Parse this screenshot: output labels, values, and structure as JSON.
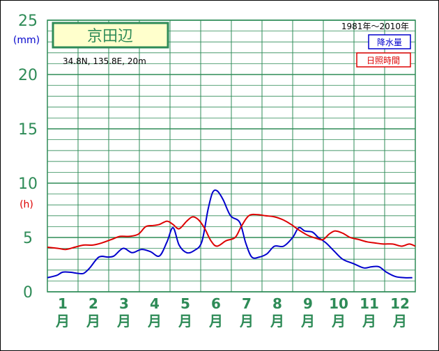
{
  "chart_data": {
    "type": "line",
    "title": "京田辺",
    "location": "34.8N, 135.8E, 20m",
    "period": "1981年～2010年",
    "units": {
      "left": "(mm)",
      "right": "(h)"
    },
    "y_ticks": [
      {
        "value": 0,
        "label": "0"
      },
      {
        "value": 5,
        "label": "5"
      },
      {
        "value": 10,
        "label": "10"
      },
      {
        "value": 15,
        "label": "15"
      },
      {
        "value": 20,
        "label": "20"
      },
      {
        "value": 25,
        "label": "25"
      }
    ],
    "ylim": [
      0,
      25
    ],
    "xlim": [
      0.5,
      12.65
    ],
    "month_labels": [
      {
        "num": "1",
        "unit": "月"
      },
      {
        "num": "2",
        "unit": "月"
      },
      {
        "num": "3",
        "unit": "月"
      },
      {
        "num": "4",
        "unit": "月"
      },
      {
        "num": "5",
        "unit": "月"
      },
      {
        "num": "6",
        "unit": "月"
      },
      {
        "num": "7",
        "unit": "月"
      },
      {
        "num": "8",
        "unit": "月"
      },
      {
        "num": "9",
        "unit": "月"
      },
      {
        "num": "10",
        "unit": "月"
      },
      {
        "num": "11",
        "unit": "月"
      },
      {
        "num": "12",
        "unit": "月"
      }
    ],
    "grid": true,
    "series": [
      {
        "name": "降水量",
        "color": "#0000cc",
        "points": [
          [
            0.5,
            1.3
          ],
          [
            0.8,
            1.5
          ],
          [
            1.0,
            1.8
          ],
          [
            1.25,
            1.8
          ],
          [
            1.5,
            1.7
          ],
          [
            1.7,
            1.7
          ],
          [
            1.9,
            2.2
          ],
          [
            2.2,
            3.2
          ],
          [
            2.5,
            3.2
          ],
          [
            2.7,
            3.3
          ],
          [
            3.0,
            4.0
          ],
          [
            3.3,
            3.6
          ],
          [
            3.6,
            3.9
          ],
          [
            3.9,
            3.7
          ],
          [
            4.2,
            3.3
          ],
          [
            4.45,
            4.6
          ],
          [
            4.65,
            5.9
          ],
          [
            4.85,
            4.3
          ],
          [
            5.1,
            3.6
          ],
          [
            5.35,
            3.8
          ],
          [
            5.6,
            4.6
          ],
          [
            5.8,
            7.5
          ],
          [
            5.95,
            9.1
          ],
          [
            6.1,
            9.3
          ],
          [
            6.3,
            8.5
          ],
          [
            6.55,
            7.0
          ],
          [
            6.85,
            6.4
          ],
          [
            7.05,
            4.5
          ],
          [
            7.25,
            3.2
          ],
          [
            7.5,
            3.2
          ],
          [
            7.75,
            3.5
          ],
          [
            8.0,
            4.2
          ],
          [
            8.3,
            4.2
          ],
          [
            8.6,
            5.0
          ],
          [
            8.8,
            5.9
          ],
          [
            9.0,
            5.6
          ],
          [
            9.25,
            5.5
          ],
          [
            9.45,
            5.0
          ],
          [
            9.7,
            4.5
          ],
          [
            9.95,
            3.8
          ],
          [
            10.25,
            3.0
          ],
          [
            10.6,
            2.6
          ],
          [
            10.95,
            2.2
          ],
          [
            11.2,
            2.3
          ],
          [
            11.45,
            2.3
          ],
          [
            11.7,
            1.8
          ],
          [
            12.0,
            1.4
          ],
          [
            12.3,
            1.3
          ],
          [
            12.55,
            1.3
          ]
        ]
      },
      {
        "name": "日照時間",
        "color": "#dd0000",
        "points": [
          [
            0.5,
            4.1
          ],
          [
            0.85,
            4.0
          ],
          [
            1.1,
            3.9
          ],
          [
            1.4,
            4.1
          ],
          [
            1.7,
            4.3
          ],
          [
            2.0,
            4.3
          ],
          [
            2.3,
            4.5
          ],
          [
            2.6,
            4.8
          ],
          [
            2.9,
            5.1
          ],
          [
            3.2,
            5.1
          ],
          [
            3.5,
            5.3
          ],
          [
            3.75,
            6.0
          ],
          [
            4.0,
            6.1
          ],
          [
            4.2,
            6.2
          ],
          [
            4.45,
            6.5
          ],
          [
            4.65,
            6.2
          ],
          [
            4.85,
            5.8
          ],
          [
            5.1,
            6.5
          ],
          [
            5.3,
            6.9
          ],
          [
            5.5,
            6.6
          ],
          [
            5.7,
            5.8
          ],
          [
            5.9,
            4.7
          ],
          [
            6.1,
            4.2
          ],
          [
            6.4,
            4.7
          ],
          [
            6.7,
            5.0
          ],
          [
            6.9,
            6.0
          ],
          [
            7.15,
            7.0
          ],
          [
            7.45,
            7.1
          ],
          [
            7.7,
            7.0
          ],
          [
            8.0,
            6.9
          ],
          [
            8.3,
            6.6
          ],
          [
            8.55,
            6.2
          ],
          [
            8.8,
            5.7
          ],
          [
            9.1,
            5.2
          ],
          [
            9.4,
            4.9
          ],
          [
            9.6,
            4.8
          ],
          [
            9.8,
            5.3
          ],
          [
            10.0,
            5.6
          ],
          [
            10.25,
            5.4
          ],
          [
            10.5,
            5.0
          ],
          [
            10.8,
            4.8
          ],
          [
            11.05,
            4.6
          ],
          [
            11.3,
            4.5
          ],
          [
            11.6,
            4.4
          ],
          [
            11.9,
            4.4
          ],
          [
            12.2,
            4.2
          ],
          [
            12.45,
            4.4
          ],
          [
            12.65,
            4.2
          ]
        ]
      }
    ]
  }
}
